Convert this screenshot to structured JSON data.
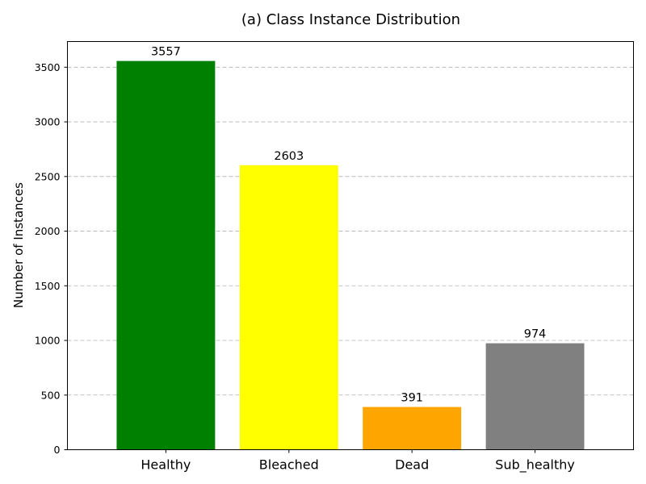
{
  "chart_data": {
    "type": "bar",
    "title": "(a) Class Instance Distribution",
    "xlabel": "",
    "ylabel": "Number of Instances",
    "categories": [
      "Healthy",
      "Bleached",
      "Dead",
      "Sub_healthy"
    ],
    "values": [
      3557,
      2603,
      391,
      974
    ],
    "data_labels": [
      "3557",
      "2603",
      "391",
      "974"
    ],
    "colors": [
      "#008000",
      "#ffff00",
      "#ffa500",
      "#808080"
    ],
    "ylim": [
      0,
      3734.85
    ],
    "yticks": [
      0,
      500,
      1000,
      1500,
      2000,
      2500,
      3000,
      3500
    ],
    "ytick_labels": [
      "0",
      "500",
      "1000",
      "1500",
      "2000",
      "2500",
      "3000",
      "3500"
    ],
    "grid": "y-dashed",
    "legend": "none"
  }
}
